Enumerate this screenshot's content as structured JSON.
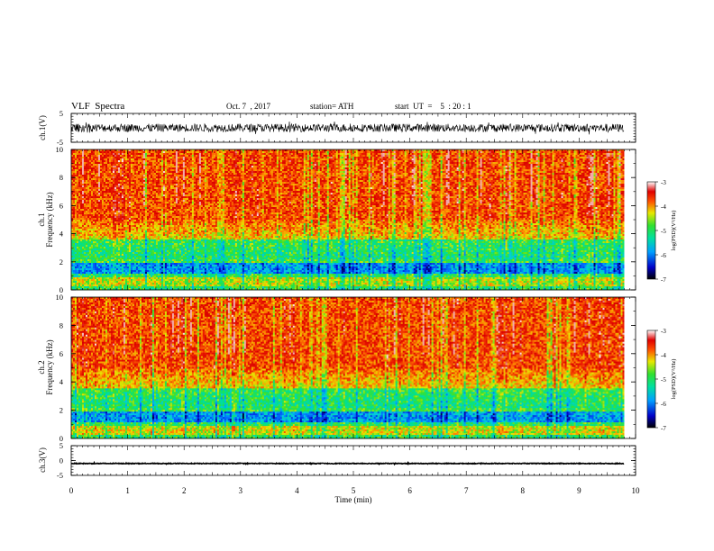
{
  "header": {
    "title": "VLF  Spectra",
    "date": "Oct. 7  , 2017",
    "station": "station= ATH",
    "start": "start  UT  =    5  : 20 : 1"
  },
  "chart_data": [
    {
      "type": "line",
      "ylabel": "ch.1(V)",
      "yticks": [
        "5",
        "-5"
      ],
      "ylim": [
        -5,
        5
      ],
      "series_color": "#000000",
      "description_values": {
        "mean": 0,
        "typical_range": [
          -3,
          3
        ]
      }
    },
    {
      "type": "heatmap",
      "ylabel": "ch.1\nFrequency (kHz)",
      "ylabel_top": "ch.1",
      "ylabel_bottom": "Frequency  (kHz)",
      "yticks": [
        "0",
        "2",
        "4",
        "6",
        "8",
        "10"
      ],
      "ylim": [
        0,
        10
      ],
      "x_extent_min": [
        0,
        9.8
      ],
      "colorbar": {
        "label": "log(PSD)(V²/Hz)",
        "ticks": [
          "-3",
          "-4",
          "-5",
          "-6",
          "-7"
        ],
        "range": [
          -7,
          -3
        ]
      }
    },
    {
      "type": "heatmap",
      "ylabel": "ch.2\nFrequency (kHz)",
      "ylabel_top": "ch.2",
      "ylabel_bottom": "Frequency  (kHz)",
      "yticks": [
        "0",
        "2",
        "4",
        "6",
        "8",
        "10"
      ],
      "ylim": [
        0,
        10
      ],
      "x_extent_min": [
        0,
        9.8
      ],
      "colorbar": {
        "label": "log(PSD)(V²/Hz)",
        "ticks": [
          "-3",
          "-4",
          "-5",
          "-6",
          "-7"
        ],
        "range": [
          -7,
          -3
        ]
      }
    },
    {
      "type": "line",
      "ylabel": "ch.3(V)",
      "yticks": [
        "5",
        "0",
        "-5"
      ],
      "ylim": [
        -5,
        5
      ],
      "series_color": "#000000",
      "description_values": {
        "mean": -1,
        "typical_range": [
          -1.2,
          -0.8
        ]
      }
    }
  ],
  "xaxis": {
    "label": "Time  (min)",
    "ticks": [
      "0",
      "1",
      "2",
      "3",
      "4",
      "5",
      "6",
      "7",
      "8",
      "9",
      "10"
    ],
    "range": [
      0,
      10
    ]
  }
}
